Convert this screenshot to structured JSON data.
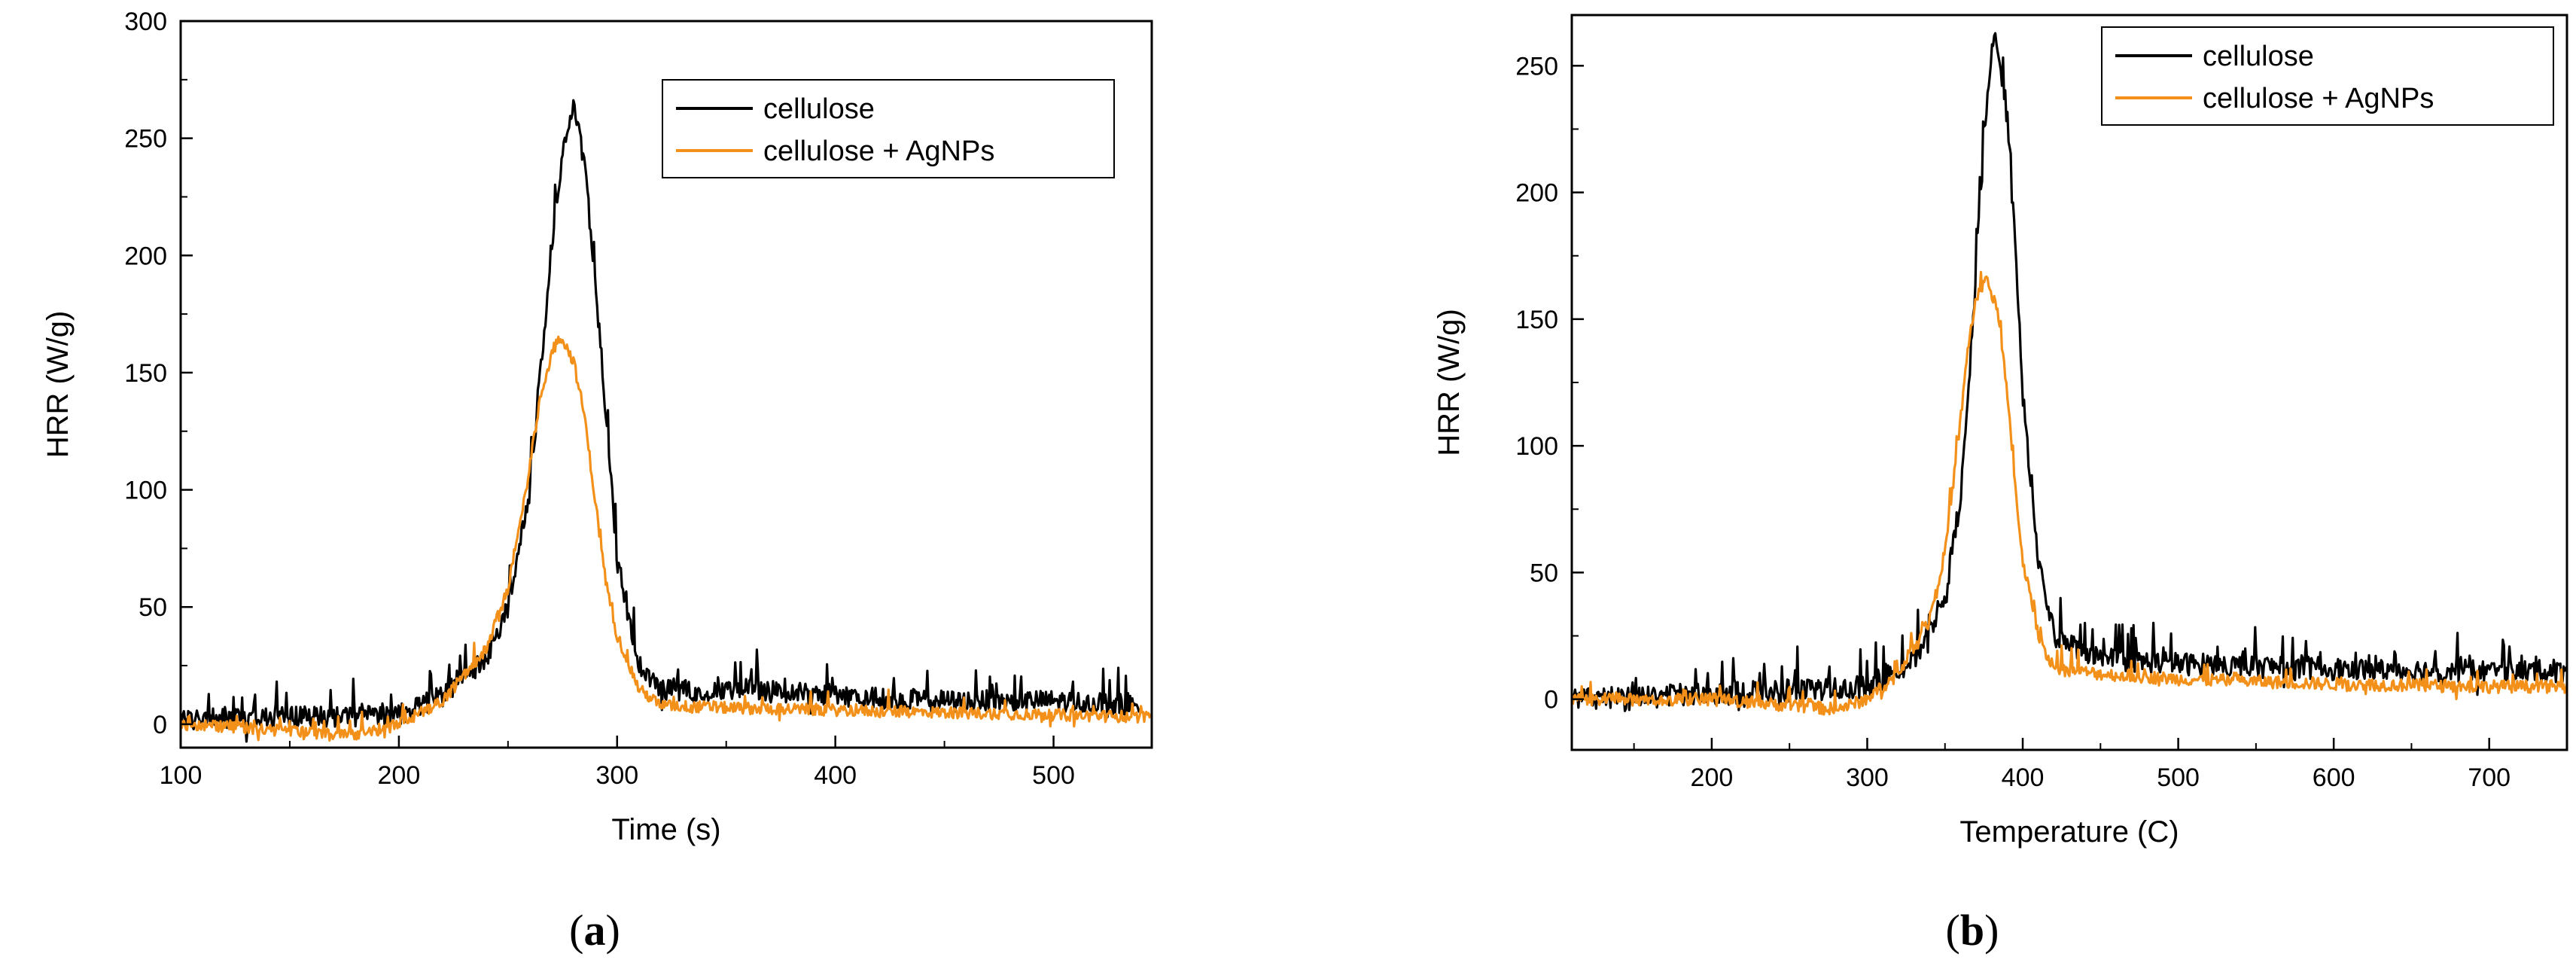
{
  "chart_data": [
    {
      "type": "line",
      "panel_label": "a",
      "xlabel": "Time (s)",
      "ylabel": "HRR (W/g)",
      "xlim": [
        100,
        545
      ],
      "ylim": [
        -10,
        300
      ],
      "xticks": [
        100,
        200,
        300,
        400,
        500
      ],
      "yticks": [
        0,
        50,
        100,
        150,
        200,
        250,
        300
      ],
      "legend_position": "top-right",
      "grid": false,
      "series": [
        {
          "name": "cellulose",
          "color": "#000000",
          "peak_x": 280,
          "peak_y": 263,
          "x": [
            100,
            150,
            200,
            220,
            240,
            250,
            260,
            265,
            270,
            275,
            280,
            285,
            290,
            295,
            300,
            310,
            320,
            340,
            360,
            400,
            450,
            500,
            540
          ],
          "y": [
            2,
            3,
            4,
            12,
            28,
            50,
            100,
            150,
            205,
            245,
            263,
            240,
            190,
            130,
            70,
            25,
            15,
            14,
            15,
            12,
            10,
            10,
            8
          ]
        },
        {
          "name": "cellulose + AgNPs",
          "color": "#F39019",
          "peak_x": 274,
          "peak_y": 166,
          "x": [
            100,
            150,
            180,
            200,
            220,
            240,
            250,
            260,
            265,
            270,
            274,
            280,
            285,
            290,
            295,
            300,
            310,
            320,
            350,
            400,
            450,
            500,
            545
          ],
          "y": [
            0,
            -3,
            -5,
            0,
            10,
            32,
            58,
            110,
            140,
            158,
            166,
            155,
            132,
            95,
            60,
            38,
            15,
            8,
            7,
            6,
            5,
            4,
            3
          ]
        }
      ]
    },
    {
      "type": "line",
      "panel_label": "b",
      "xlabel": "Temperature (C)",
      "ylabel": "HRR (W/g)",
      "xlim": [
        110,
        750
      ],
      "ylim": [
        -20,
        270
      ],
      "xticks": [
        200,
        300,
        400,
        500,
        600,
        700
      ],
      "yticks": [
        0,
        50,
        100,
        150,
        200,
        250
      ],
      "legend_position": "top-right",
      "grid": false,
      "series": [
        {
          "name": "cellulose",
          "color": "#000000",
          "peak_x": 383,
          "peak_y": 263,
          "x": [
            110,
            200,
            300,
            330,
            350,
            360,
            365,
            370,
            375,
            380,
            383,
            390,
            395,
            400,
            410,
            420,
            450,
            500,
            600,
            700,
            750
          ],
          "y": [
            0,
            2,
            5,
            15,
            40,
            80,
            120,
            170,
            220,
            255,
            263,
            230,
            180,
            120,
            55,
            25,
            16,
            14,
            12,
            11,
            11
          ]
        },
        {
          "name": "cellulose + AgNPs",
          "color": "#F39019",
          "peak_x": 377,
          "peak_y": 166,
          "x": [
            110,
            200,
            280,
            300,
            320,
            340,
            350,
            360,
            365,
            370,
            377,
            385,
            390,
            395,
            400,
            410,
            420,
            450,
            500,
            600,
            700,
            750
          ],
          "y": [
            0,
            0,
            -4,
            0,
            10,
            32,
            58,
            110,
            140,
            158,
            166,
            150,
            120,
            85,
            55,
            25,
            12,
            10,
            8,
            6,
            5,
            5
          ]
        }
      ]
    }
  ]
}
